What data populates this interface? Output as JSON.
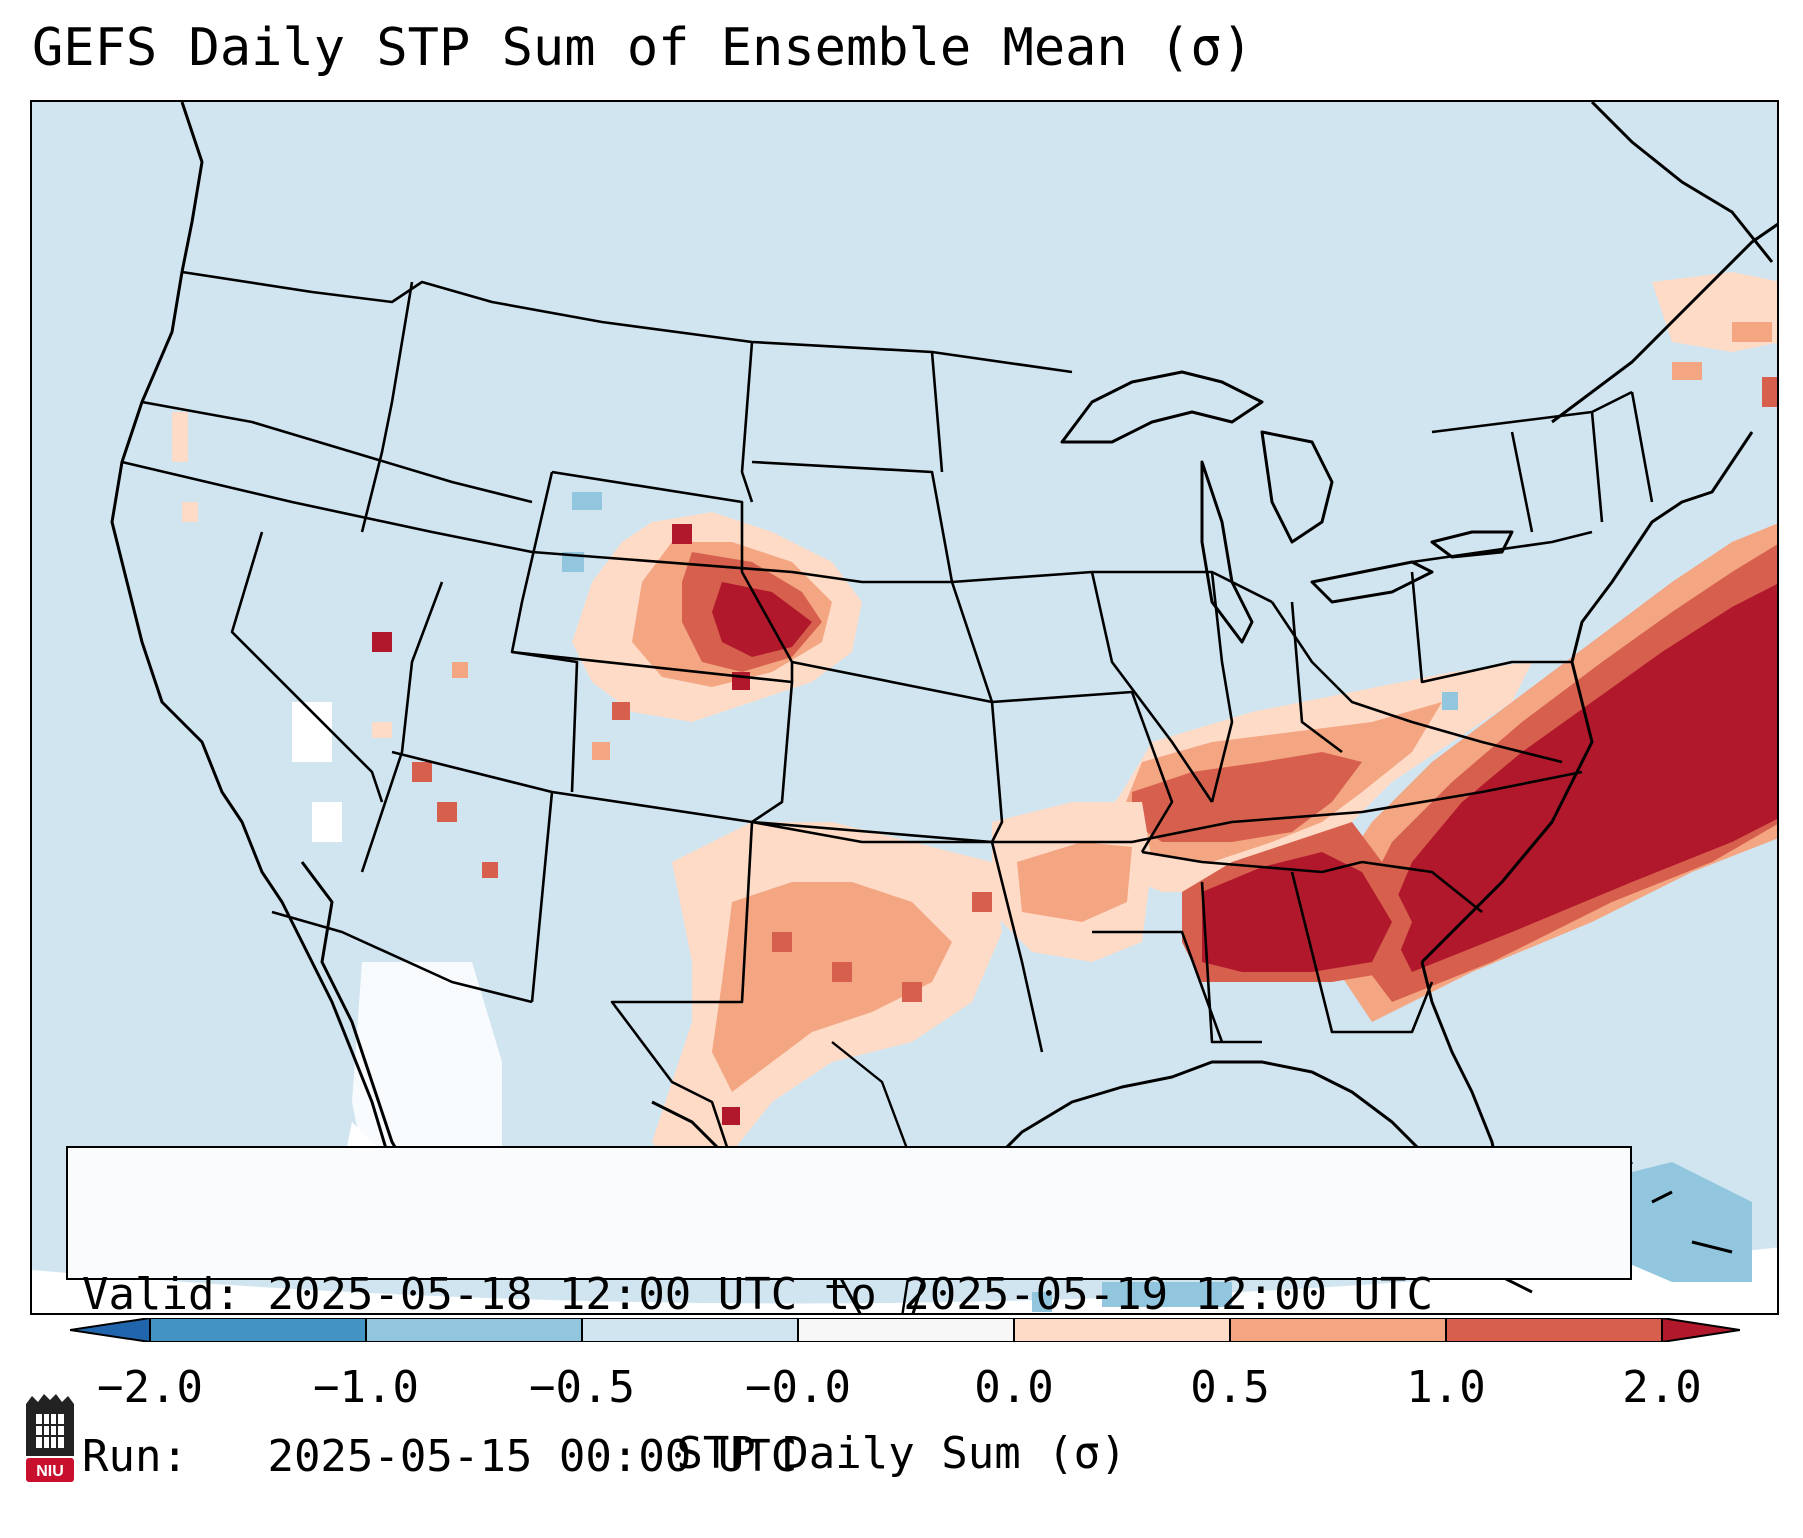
{
  "title": "GEFS Daily STP Sum of Ensemble Mean (σ)",
  "info_box": {
    "valid_label": "Valid:",
    "valid_value": "2025-05-18 12:00 UTC to 2025-05-19 12:00 UTC",
    "run_label": "Run:",
    "run_value": "2025-05-15 00:00 UTC"
  },
  "colorbar": {
    "label": "STP Daily Sum (σ)",
    "tick_labels": [
      "−2.0",
      "−1.0",
      "−0.5",
      "−0.0",
      "0.0",
      "0.5",
      "1.0",
      "2.0"
    ],
    "bins": [
      {
        "range": "-2.0 to -1.0",
        "color": "#4393c3"
      },
      {
        "range": "-1.0 to -0.5",
        "color": "#92c5de"
      },
      {
        "range": "-0.5 to -0.0",
        "color": "#d1e5f0"
      },
      {
        "range": "-0.0 to 0.0",
        "color": "#f7f7f7"
      },
      {
        "range": "0.0 to 0.5",
        "color": "#fddbc7"
      },
      {
        "range": "0.5 to 1.0",
        "color": "#f4a582"
      },
      {
        "range": "1.0 to 2.0",
        "color": "#d6604d"
      }
    ],
    "under_color": "#2166ac",
    "over_color": "#b2182b"
  },
  "logo": {
    "text": "NIU",
    "color": "#c8102e"
  },
  "map": {
    "projection": "Lambert Conformal, CONUS",
    "background_field_color": "#d1e5f0",
    "highlighted_regions": [
      {
        "name": "Southeast US / Atlantic (Carolinas, Georgia, Alabama)",
        "stp_sigma": "> 2.0"
      },
      {
        "name": "Western Nebraska / NE Colorado",
        "stp_sigma": "> 2.0"
      },
      {
        "name": "Tennessee Valley / Mississippi",
        "stp_sigma": "1.0 to 2.0"
      },
      {
        "name": "Texas / Oklahoma",
        "stp_sigma": "0.5 to 1.0"
      }
    ]
  }
}
